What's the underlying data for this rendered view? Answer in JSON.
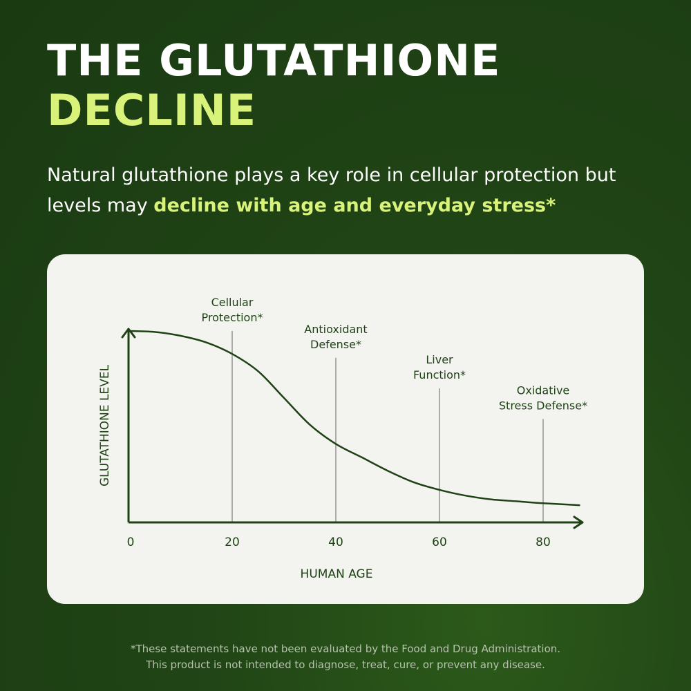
{
  "header": {
    "title_line1": "THE GLUTATHIONE",
    "title_line2": "DECLINE",
    "subtitle_plain": "Natural glutathione plays a key role in cellular protection but levels may ",
    "subtitle_highlight": "decline with age and everyday stress*"
  },
  "colors": {
    "background": "#1f4215",
    "accent": "#d8f27a",
    "chart_line": "#1f4215",
    "marker_line": "#a9aca8",
    "card": "#f3f4f0"
  },
  "chart_data": {
    "type": "line",
    "xlabel": "HUMAN AGE",
    "ylabel": "GLUTATHIONE LEVEL",
    "xlim": [
      0,
      88
    ],
    "ylim": [
      0,
      100
    ],
    "x_ticks": [
      "0",
      "20",
      "40",
      "60",
      "80"
    ],
    "x_tick_values": [
      0,
      20,
      40,
      60,
      80
    ],
    "grid": false,
    "series": [
      {
        "x": [
          0,
          5,
          10,
          15,
          20,
          25,
          30,
          35,
          40,
          45,
          50,
          55,
          60,
          65,
          70,
          75,
          80,
          87
        ],
        "y": [
          100,
          99.5,
          97.5,
          94,
          88,
          79,
          65,
          51,
          41,
          34,
          27,
          21,
          17,
          14,
          12,
          11,
          10,
          9
        ]
      }
    ],
    "markers": [
      {
        "age": 20,
        "level": 100,
        "label": [
          "Cellular",
          "Protection*"
        ]
      },
      {
        "age": 40,
        "level": 86,
        "label": [
          "Antioxidant",
          "Defense*"
        ]
      },
      {
        "age": 60,
        "level": 70,
        "label": [
          "Liver",
          "Function*"
        ]
      },
      {
        "age": 80,
        "level": 54,
        "label": [
          "Oxidative",
          "Stress Defense*"
        ]
      }
    ]
  },
  "footer": {
    "line1": "*These statements have not been evaluated by the Food and Drug Administration.",
    "line2": "This product is not intended to diagnose, treat, cure, or prevent any disease."
  }
}
